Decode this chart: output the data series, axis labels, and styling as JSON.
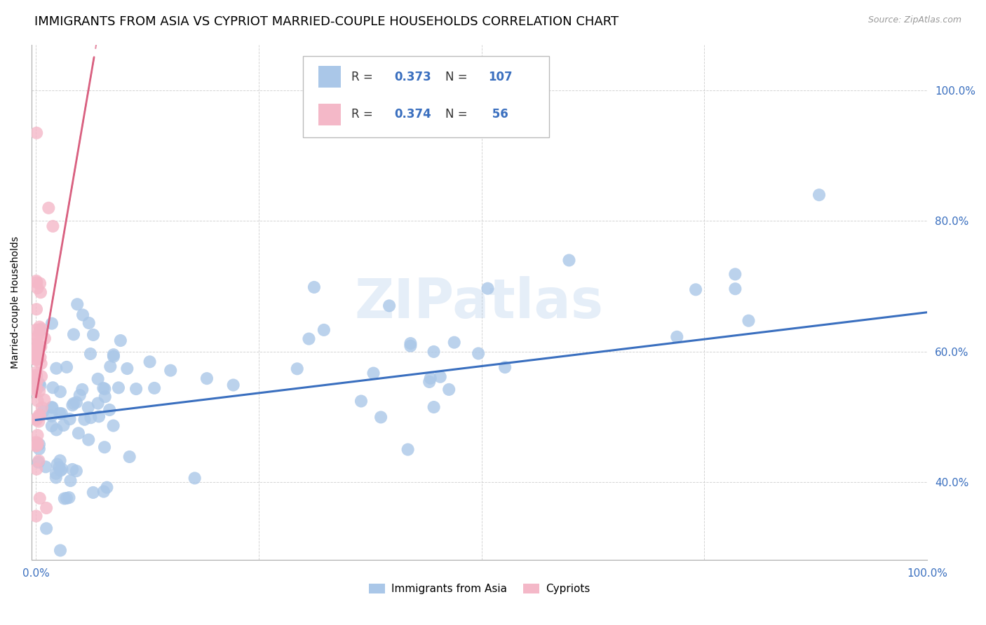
{
  "title": "IMMIGRANTS FROM ASIA VS CYPRIOT MARRIED-COUPLE HOUSEHOLDS CORRELATION CHART",
  "source": "Source: ZipAtlas.com",
  "series1_label": "Immigrants from Asia",
  "series1_color": "#aac7e8",
  "series1_line_color": "#3a6fbf",
  "series1_R": 0.373,
  "series1_N": 107,
  "series2_label": "Cypriots",
  "series2_color": "#f4b8c8",
  "series2_line_color": "#d96080",
  "series2_R": 0.374,
  "series2_N": 56,
  "legend_color": "#3a6fbf",
  "watermark": "ZIPatlas",
  "background_color": "#ffffff",
  "grid_color": "#cccccc",
  "title_fontsize": 13,
  "ylabel": "Married-couple Households",
  "tick_color": "#3a6fbf",
  "tick_fontsize": 11
}
